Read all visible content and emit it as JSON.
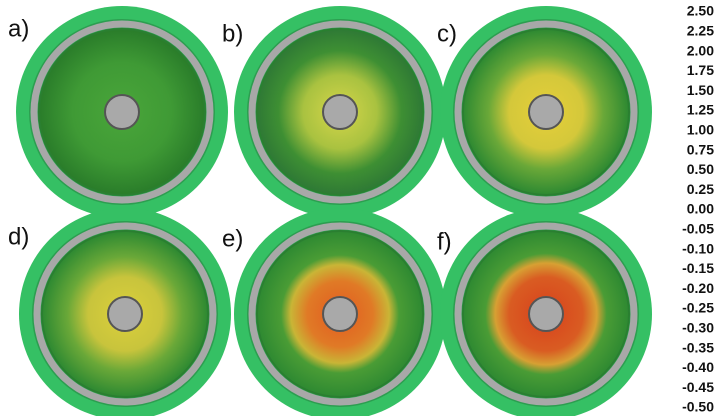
{
  "panels": [
    {
      "label": "a)"
    },
    {
      "label": "b)"
    },
    {
      "label": "c)"
    },
    {
      "label": "d)"
    },
    {
      "label": "e)"
    },
    {
      "label": "f)"
    }
  ],
  "color_scale": {
    "labels": [
      "2.50",
      "2.25",
      "2.00",
      "1.75",
      "1.50",
      "1.25",
      "1.00",
      "0.75",
      "0.50",
      "0.25",
      "0.00",
      "-0.05",
      "-0.10",
      "-0.15",
      "-0.20",
      "-0.25",
      "-0.30",
      "-0.35",
      "-0.40",
      "-0.45",
      "-0.50"
    ]
  }
}
